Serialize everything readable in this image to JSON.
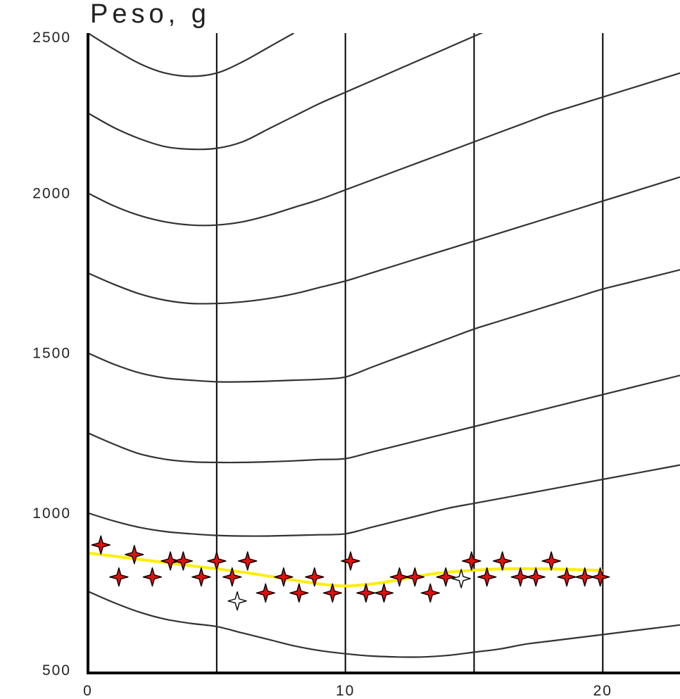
{
  "chart_data": {
    "type": "line",
    "title": "",
    "ylabel": "Peso, g",
    "xlabel": "",
    "xlim": [
      0,
      23
    ],
    "ylim": [
      500,
      2500
    ],
    "x_ticks": [
      {
        "value": 0,
        "label": "0"
      },
      {
        "value": 10,
        "label": "10"
      },
      {
        "value": 20,
        "label": "20"
      }
    ],
    "x_gridlines": [
      5,
      10,
      15,
      20
    ],
    "y_ticks": [
      {
        "value": 500,
        "label": "500"
      },
      {
        "value": 1000,
        "label": "1000"
      },
      {
        "value": 1500,
        "label": "1500"
      },
      {
        "value": 2000,
        "label": "2000"
      },
      {
        "value": 2500,
        "label": "2500"
      }
    ],
    "grid": "vertical",
    "legend": "none",
    "colors": {
      "reference_curves": "#333333",
      "fitted_curve": "#ffee00",
      "markers_fill": "#dd1111",
      "markers_outline": "#000000",
      "open_markers_fill": "#ffffff"
    },
    "reference_curves": [
      {
        "x": [
          0,
          1,
          2,
          3,
          4,
          5,
          6,
          7,
          8,
          9,
          10,
          11,
          12,
          13,
          14,
          15,
          16,
          17,
          18,
          19,
          20,
          21,
          22,
          23
        ],
        "y": [
          755,
          720,
          690,
          668,
          655,
          645,
          625,
          605,
          585,
          570,
          560,
          553,
          550,
          550,
          555,
          565,
          575,
          590,
          600,
          610,
          620,
          630,
          640,
          650
        ]
      },
      {
        "x": [
          0,
          1,
          2,
          3,
          4,
          5,
          6,
          7,
          8,
          9,
          10,
          11,
          12,
          13,
          14,
          15,
          16,
          17,
          18,
          19,
          20,
          21,
          22,
          23
        ],
        "y": [
          1000,
          975,
          955,
          942,
          935,
          930,
          928,
          928,
          930,
          932,
          935,
          955,
          975,
          995,
          1015,
          1030,
          1045,
          1060,
          1075,
          1090,
          1105,
          1120,
          1135,
          1150
        ]
      },
      {
        "x": [
          0,
          1,
          2,
          3,
          4,
          5,
          6,
          7,
          8,
          9,
          10,
          11,
          12,
          13,
          14,
          15,
          16,
          17,
          18,
          19,
          20,
          21,
          22,
          23
        ],
        "y": [
          1250,
          1215,
          1185,
          1168,
          1160,
          1158,
          1158,
          1160,
          1163,
          1167,
          1170,
          1190,
          1210,
          1230,
          1250,
          1270,
          1290,
          1310,
          1330,
          1350,
          1370,
          1390,
          1410,
          1430
        ]
      },
      {
        "x": [
          0,
          1,
          2,
          3,
          4,
          5,
          6,
          7,
          8,
          9,
          10,
          11,
          12,
          13,
          14,
          15,
          16,
          17,
          18,
          19,
          20,
          21,
          22,
          23
        ],
        "y": [
          1500,
          1465,
          1438,
          1422,
          1415,
          1410,
          1410,
          1412,
          1415,
          1418,
          1425,
          1455,
          1485,
          1515,
          1545,
          1575,
          1600,
          1625,
          1650,
          1675,
          1700,
          1720,
          1740,
          1760
        ]
      },
      {
        "x": [
          0,
          1,
          2,
          3,
          4,
          5,
          6,
          7,
          8,
          9,
          10,
          11,
          12,
          13,
          14,
          15,
          16,
          17,
          18,
          19,
          20,
          21,
          22,
          23
        ],
        "y": [
          1750,
          1715,
          1685,
          1665,
          1655,
          1655,
          1660,
          1670,
          1685,
          1705,
          1725,
          1750,
          1775,
          1800,
          1825,
          1850,
          1875,
          1900,
          1925,
          1950,
          1975,
          2000,
          2025,
          2050
        ]
      },
      {
        "x": [
          0,
          1,
          2,
          3,
          4,
          5,
          6,
          7,
          8,
          9,
          10,
          11,
          12,
          13,
          14,
          15,
          16,
          17,
          18,
          19,
          20,
          21,
          22,
          23
        ],
        "y": [
          2000,
          1960,
          1930,
          1910,
          1900,
          1900,
          1910,
          1930,
          1955,
          1980,
          2010,
          2040,
          2070,
          2100,
          2130,
          2160,
          2190,
          2220,
          2250,
          2275,
          2300,
          2325,
          2350,
          2375
        ]
      },
      {
        "x": [
          0,
          1,
          2,
          3,
          4,
          5,
          6,
          7,
          8,
          9,
          10,
          11,
          12,
          13,
          14,
          15,
          16,
          17,
          18,
          19,
          20,
          21,
          22,
          23
        ],
        "y": [
          2250,
          2205,
          2170,
          2145,
          2137,
          2140,
          2160,
          2200,
          2240,
          2280,
          2315,
          2350,
          2385,
          2420,
          2455,
          2490,
          2525,
          2560,
          2595,
          2630,
          2665,
          2700,
          2735,
          2770
        ]
      },
      {
        "x": [
          0,
          1,
          2,
          3,
          4,
          5,
          6,
          7,
          8
        ],
        "y": [
          2500,
          2450,
          2405,
          2375,
          2365,
          2375,
          2410,
          2455,
          2500
        ]
      }
    ],
    "series": [
      {
        "type": "line",
        "x": [
          0,
          2,
          4,
          6,
          8,
          9,
          10,
          11,
          12,
          13,
          14,
          16,
          18,
          20
        ],
        "y": [
          875,
          855,
          835,
          815,
          790,
          778,
          772,
          778,
          790,
          805,
          815,
          825,
          825,
          820
        ]
      },
      {
        "type": "scatter",
        "x": [
          0.5,
          1.2,
          1.8,
          2.5,
          3.2,
          3.7,
          4.4,
          5.0,
          5.6,
          6.2,
          6.9,
          7.6,
          8.2,
          8.8,
          9.5,
          10.2,
          10.8,
          11.5,
          12.1,
          12.7,
          13.3,
          13.9,
          14.9,
          15.5,
          16.1,
          16.8,
          17.4,
          18.0,
          18.6,
          19.3,
          19.9
        ],
        "y": [
          900,
          800,
          870,
          800,
          850,
          850,
          800,
          850,
          800,
          850,
          750,
          800,
          750,
          800,
          750,
          850,
          750,
          750,
          800,
          800,
          750,
          800,
          850,
          800,
          850,
          800,
          800,
          850,
          800,
          800,
          800
        ]
      },
      {
        "type": "scatter",
        "marker": "open",
        "x": [
          5.8,
          14.5
        ],
        "y": [
          725,
          795
        ]
      }
    ]
  }
}
